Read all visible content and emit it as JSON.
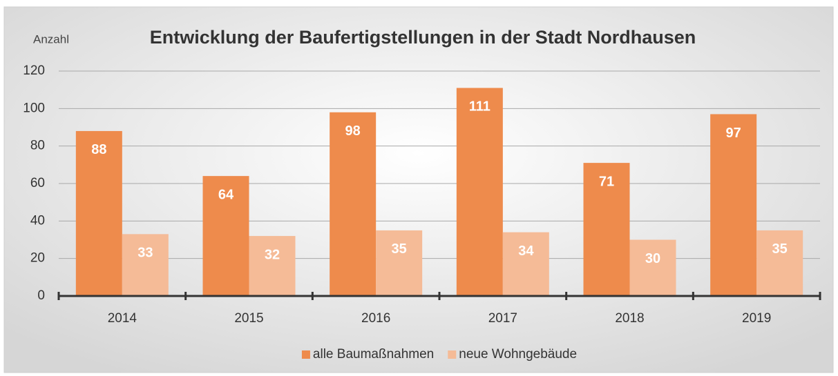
{
  "chart_data": {
    "type": "bar",
    "title": "Entwicklung der Baufertigstellungen in der Stadt Nordhausen",
    "y_label": "Anzahl",
    "categories": [
      "2014",
      "2015",
      "2016",
      "2017",
      "2018",
      "2019"
    ],
    "series": [
      {
        "name": "alle Baumaßnahmen",
        "color": "#ee8b4c",
        "values": [
          88,
          64,
          98,
          111,
          71,
          97
        ]
      },
      {
        "name": "neue Wohngebäude",
        "color": "#f5bb97",
        "values": [
          33,
          32,
          35,
          34,
          30,
          35
        ]
      }
    ],
    "ylim": [
      0,
      120
    ],
    "yticks": [
      0,
      20,
      40,
      60,
      80,
      100,
      120
    ],
    "grid": true,
    "legend": "bottom"
  }
}
